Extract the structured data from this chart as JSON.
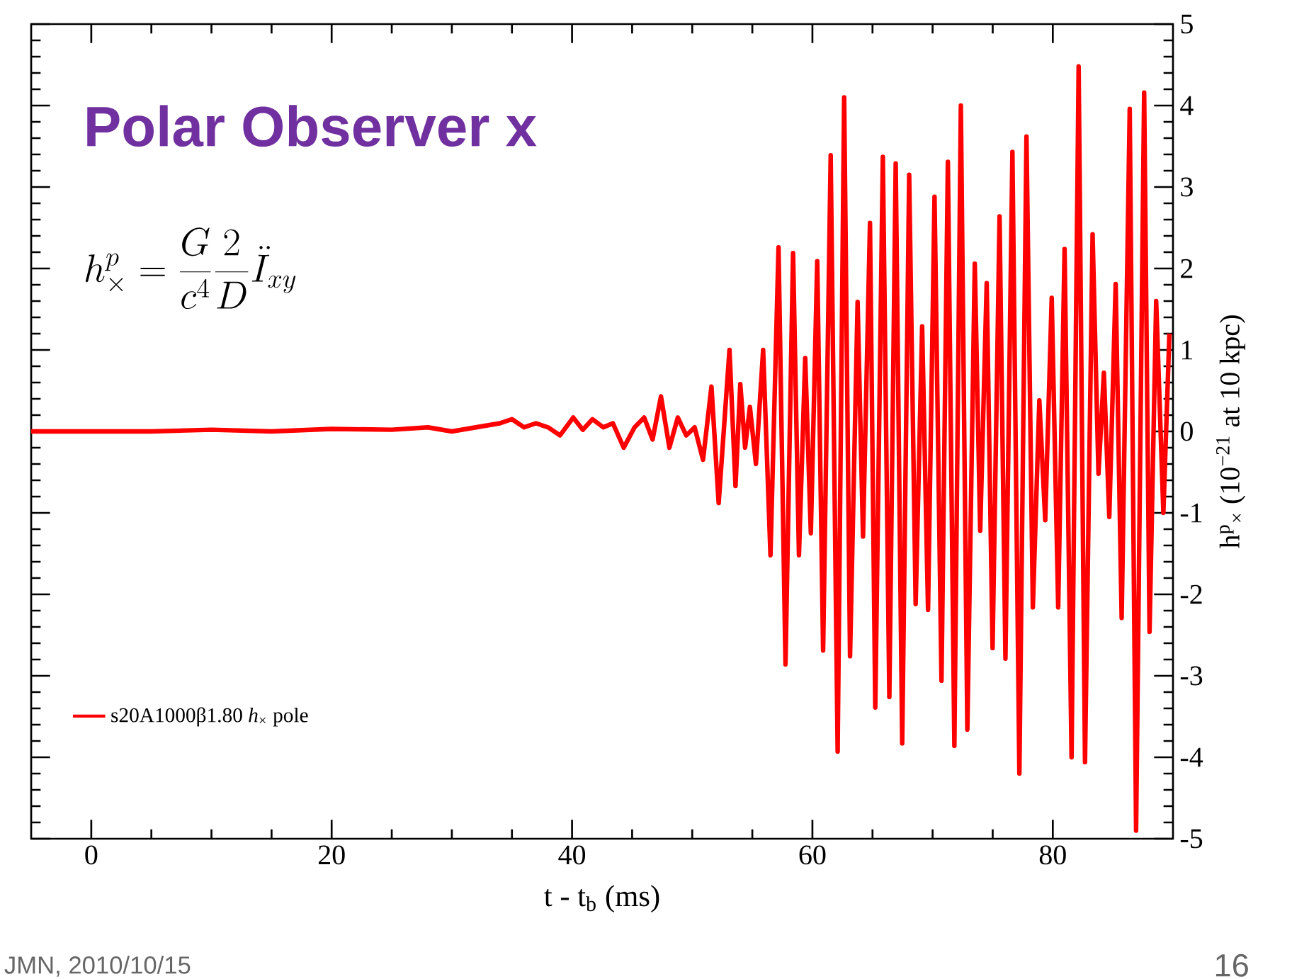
{
  "chart_data": {
    "type": "line",
    "title": "Polar Observer x",
    "xlabel": "t - t$_{b}$ (ms)",
    "ylabel": "h$^{p}$$_{×}$ (10$^{−21}$ at 10 kpc)",
    "annotations": [
      "h^{p}_{\\times} = \\frac{G}{c^4}\\frac{2}{D}\\ddot{I}_{xy}",
      "JMN, 2010/10/15",
      "16"
    ],
    "xlim": [
      -5,
      90
    ],
    "ylim": [
      -5,
      5
    ],
    "xticks": [
      0,
      20,
      40,
      60,
      80
    ],
    "yticks": [
      -5,
      -4,
      -3,
      -2,
      -1,
      0,
      1,
      2,
      3,
      4,
      5
    ],
    "legend": "bottom left",
    "series": [
      {
        "name": "s20A1000β1.80 *h*$_{×}$ pole",
        "color": "#ff0000",
        "x": [
          -5,
          5,
          10,
          15,
          20,
          25,
          28,
          30,
          32,
          34,
          35,
          36,
          37,
          38,
          39,
          40.1,
          40.9,
          41.7,
          42.6,
          43.4,
          44.3,
          45.2,
          46.0,
          46.7,
          47.4,
          48.1,
          48.8,
          49.5,
          50.2,
          50.9,
          51.6,
          52.2,
          53.1,
          53.6,
          54.0,
          54.4,
          54.8,
          55.3,
          55.9,
          56.51,
          57.18,
          57.76,
          58.39,
          58.88,
          59.4,
          59.87,
          60.4,
          60.89,
          61.52,
          62.1,
          62.64,
          63.13,
          63.76,
          64.21,
          64.79,
          65.23,
          65.86,
          66.4,
          66.93,
          67.47,
          68.05,
          68.59,
          69.13,
          69.62,
          70.16,
          70.74,
          71.27,
          71.81,
          72.35,
          72.89,
          73.51,
          73.96,
          74.5,
          74.99,
          75.57,
          76.06,
          76.64,
          77.22,
          77.81,
          78.34,
          78.88,
          79.37,
          79.91,
          80.45,
          80.98,
          81.56,
          82.15,
          82.68,
          83.31,
          83.8,
          84.25,
          84.7,
          85.23,
          85.73,
          86.4,
          86.93,
          87.6,
          88.05,
          88.6,
          89.2,
          89.7
        ],
        "values": [
          0,
          0,
          0.02,
          0,
          0.03,
          0.02,
          0.05,
          0,
          0.05,
          0.1,
          0.15,
          0.05,
          0.1,
          0.05,
          -0.05,
          0.17,
          0.02,
          0.15,
          0.05,
          0.1,
          -0.2,
          0.05,
          0.17,
          -0.1,
          0.43,
          -0.2,
          0.17,
          -0.05,
          0.05,
          -0.35,
          0.55,
          -0.88,
          1.0,
          -0.67,
          0.58,
          -0.2,
          0.3,
          -0.4,
          1.0,
          -1.52,
          2.26,
          -2.86,
          2.19,
          -1.52,
          0.9,
          -1.25,
          2.09,
          -2.69,
          3.39,
          -3.93,
          4.1,
          -2.76,
          1.59,
          -1.29,
          2.56,
          -3.39,
          3.37,
          -3.26,
          3.29,
          -3.83,
          3.15,
          -2.12,
          1.29,
          -2.19,
          2.88,
          -3.06,
          3.31,
          -3.86,
          4.0,
          -3.66,
          2.06,
          -1.22,
          1.82,
          -2.66,
          2.64,
          -2.79,
          3.43,
          -4.2,
          3.62,
          -2.16,
          0.38,
          -1.09,
          1.64,
          -2.16,
          2.24,
          -4.0,
          4.48,
          -4.06,
          2.42,
          -0.52,
          0.72,
          -1.05,
          1.81,
          -2.29,
          3.96,
          -4.9,
          4.16,
          -2.46,
          1.6,
          -1.0,
          1.2
        ]
      }
    ]
  }
}
